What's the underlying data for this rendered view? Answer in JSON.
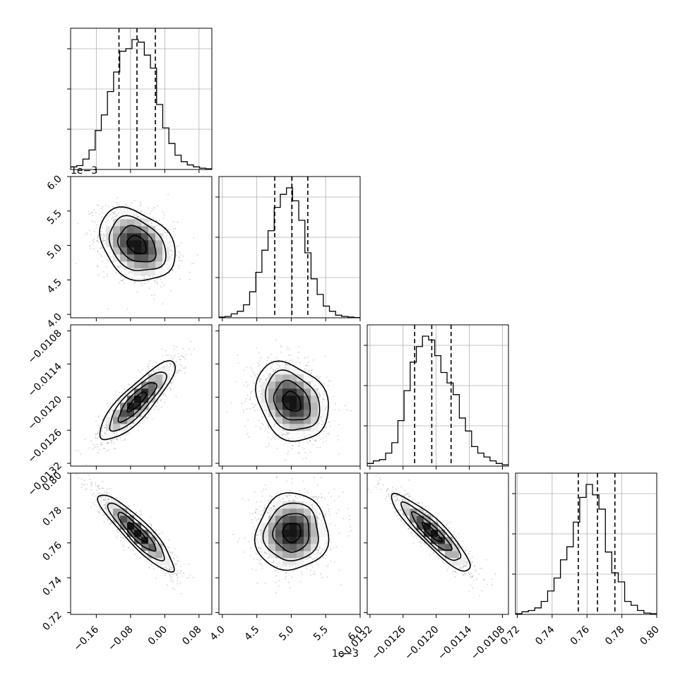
{
  "chart_data": {
    "type": "corner",
    "parameters": [
      {
        "center": -0.065,
        "sigma": 0.042,
        "range": [
          -0.22,
          0.11
        ],
        "q16": -0.107,
        "q50": -0.065,
        "q84": -0.022,
        "ticks": [
          -0.16,
          -0.08,
          0.0,
          0.08
        ],
        "tick_labels": [
          "−0.16",
          "−0.08",
          "0.00",
          "0.08"
        ],
        "offset_text": ""
      },
      {
        "center": 0.00501,
        "sigma": 0.00025,
        "range": [
          0.00395,
          0.006
        ],
        "q16": 0.00476,
        "q50": 0.00501,
        "q84": 0.00524,
        "ticks": [
          0.004,
          0.0045,
          0.005,
          0.0055,
          0.006
        ],
        "tick_labels": [
          "4.0",
          "4.5",
          "5.0",
          "5.5",
          "6.0"
        ],
        "offset_text": "1e−3"
      },
      {
        "center": -0.01208,
        "sigma": 0.00034,
        "range": [
          -0.01325,
          -0.01069
        ],
        "q16": -0.01239,
        "q50": -0.01208,
        "q84": -0.01173,
        "ticks": [
          -0.0132,
          -0.0126,
          -0.012,
          -0.0114,
          -0.0108
        ],
        "tick_labels": [
          "−0.0132",
          "−0.0126",
          "−0.0120",
          "−0.0114",
          "−0.0108"
        ],
        "offset_text": ""
      },
      {
        "center": 0.766,
        "sigma": 0.0105,
        "range": [
          0.719,
          0.8
        ],
        "q16": 0.755,
        "q50": 0.766,
        "q84": 0.776,
        "ticks": [
          0.72,
          0.74,
          0.76,
          0.78,
          0.8
        ],
        "tick_labels": [
          "0.72",
          "0.74",
          "0.76",
          "0.78",
          "0.80"
        ],
        "offset_text": ""
      }
    ],
    "correlations": {
      "1-0": -0.3,
      "2-0": 0.85,
      "2-1": -0.25,
      "3-0": -0.9,
      "3-1": 0.05,
      "3-2": -0.9
    },
    "histograms": [
      [
        0.02,
        0.03,
        0.08,
        0.15,
        0.3,
        0.42,
        0.6,
        0.75,
        0.91,
        0.93,
        1.0,
        0.98,
        0.88,
        0.78,
        0.5,
        0.32,
        0.2,
        0.11,
        0.06,
        0.035,
        0.02,
        0.01,
        0.005
      ],
      [
        0.005,
        0.01,
        0.03,
        0.05,
        0.1,
        0.2,
        0.35,
        0.52,
        0.67,
        0.85,
        0.95,
        1.0,
        0.9,
        0.75,
        0.5,
        0.3,
        0.18,
        0.09,
        0.05,
        0.02,
        0.01,
        0.005,
        0.002
      ],
      [
        0.02,
        0.04,
        0.05,
        0.1,
        0.18,
        0.35,
        0.58,
        0.8,
        0.92,
        1.0,
        0.97,
        0.85,
        0.72,
        0.64,
        0.55,
        0.37,
        0.27,
        0.15,
        0.1,
        0.07,
        0.04,
        0.02,
        0.01
      ],
      [
        0.005,
        0.02,
        0.03,
        0.05,
        0.1,
        0.18,
        0.28,
        0.42,
        0.52,
        0.71,
        0.9,
        1.0,
        0.92,
        0.81,
        0.48,
        0.32,
        0.25,
        0.1,
        0.07,
        0.03,
        0.01,
        0.005
      ]
    ],
    "grid": true
  }
}
